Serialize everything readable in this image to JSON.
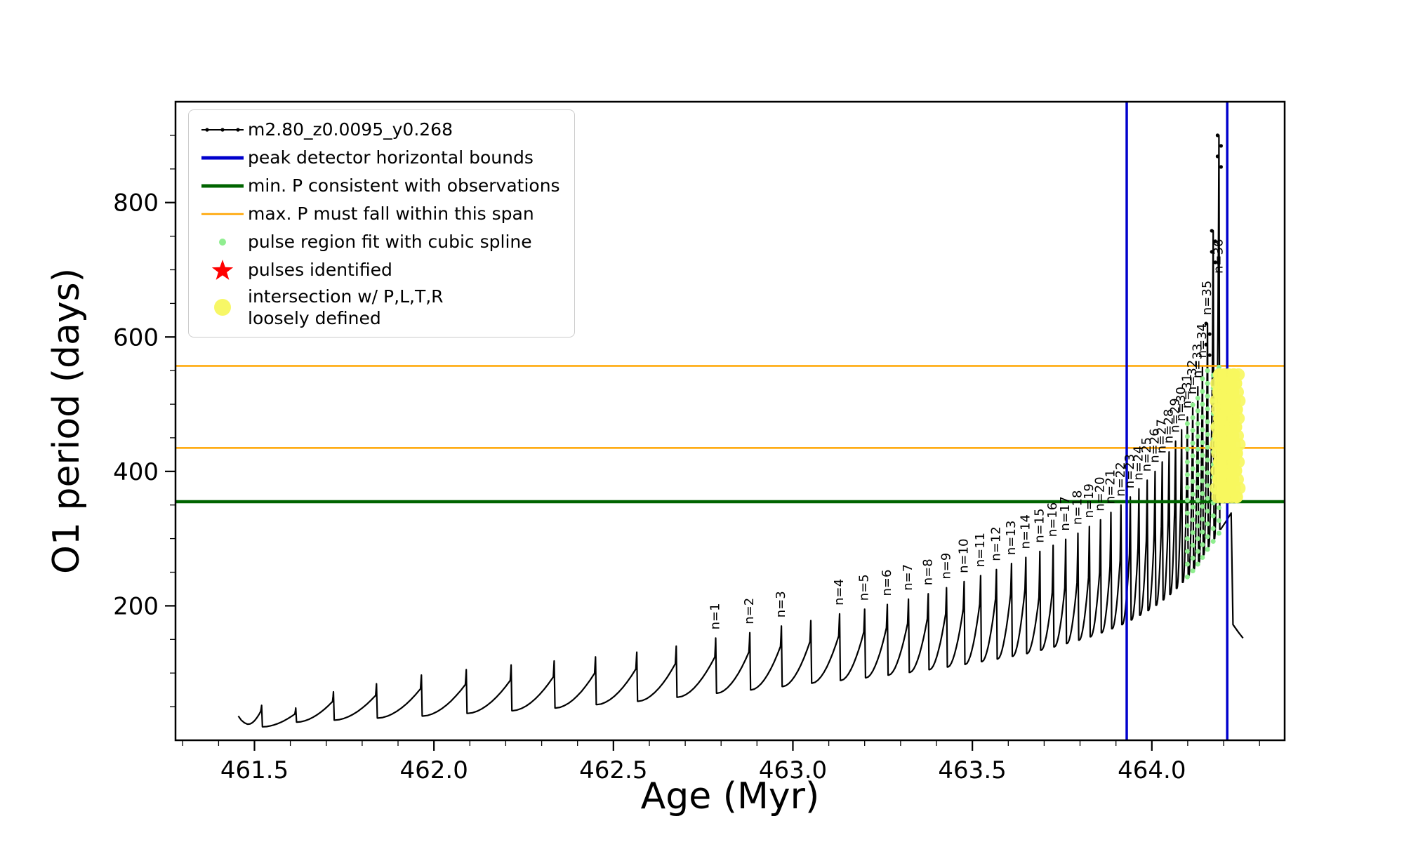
{
  "figure": {
    "background": "#ffffff"
  },
  "chart_data": {
    "type": "line",
    "title": "",
    "xlabel": "Age (Myr)",
    "ylabel": "O1 period (days)",
    "xlim": [
      461.28,
      464.37
    ],
    "ylim": [
      0,
      950
    ],
    "xticks": [
      461.5,
      462.0,
      462.5,
      463.0,
      463.5,
      464.0
    ],
    "xtick_labels": [
      "461.5",
      "462.0",
      "462.5",
      "463.0",
      "463.5",
      "464.0"
    ],
    "yticks": [
      200,
      400,
      600,
      800
    ],
    "ytick_labels": [
      "200",
      "400",
      "600",
      "800"
    ],
    "minor_x_step": 0.1,
    "minor_y_step": 50,
    "grid": false,
    "series_name": "m2.80_z0.0095_y0.268",
    "series_color": "#000000",
    "peak_detector_bounds": {
      "label": "peak detector horizontal bounds",
      "color": "#0000cd",
      "x": [
        463.93,
        464.21
      ]
    },
    "min_period_line": {
      "label": "min. P consistent with observations",
      "color": "#006400",
      "y": 355
    },
    "max_period_span": {
      "label": "max. P must fall within this span",
      "color": "#ffa500",
      "y": [
        435,
        557
      ]
    },
    "spline_region": {
      "label": "pulse region fit with cubic spline",
      "color": "#90ee90",
      "x_min": 464.09,
      "x_max": 464.19,
      "y_cap": 560
    },
    "pulses_identified": {
      "label": "pulses identified",
      "color": "#ff0000"
    },
    "intersection": {
      "label": "intersection w/ P,L,T,R\nloosely defined",
      "color": "#f7f75e",
      "x_columns": [
        464.183,
        464.191,
        464.199,
        464.207,
        464.215,
        464.223,
        464.231,
        464.239
      ],
      "y_min": 362,
      "y_max": 552,
      "y_step": 13,
      "radius": 9
    },
    "lead_in": [
      [
        461.455,
        36
      ],
      [
        461.463,
        30
      ],
      [
        461.472,
        26
      ],
      [
        461.48,
        24
      ]
    ],
    "pulses": [
      [
        461.52,
        24,
        52,
        null
      ],
      [
        461.615,
        20,
        48,
        null
      ],
      [
        461.72,
        27,
        72,
        null
      ],
      [
        461.84,
        30,
        84,
        null
      ],
      [
        461.965,
        33,
        97,
        null
      ],
      [
        462.09,
        36,
        105,
        null
      ],
      [
        462.215,
        40,
        112,
        null
      ],
      [
        462.335,
        44,
        118,
        null
      ],
      [
        462.45,
        48,
        124,
        null
      ],
      [
        462.565,
        53,
        131,
        null
      ],
      [
        462.675,
        58,
        140,
        null
      ],
      [
        462.785,
        64,
        152,
        "n=1"
      ],
      [
        462.88,
        70,
        160,
        "n=2"
      ],
      [
        462.968,
        75,
        170,
        "n=3"
      ],
      [
        463.05,
        80,
        178,
        null
      ],
      [
        463.13,
        85,
        188,
        "n=4"
      ],
      [
        463.2,
        89,
        195,
        "n=5"
      ],
      [
        463.263,
        93,
        202,
        "n=6"
      ],
      [
        463.322,
        97,
        210,
        "n=7"
      ],
      [
        463.377,
        101,
        218,
        "n=8"
      ],
      [
        463.428,
        105,
        227,
        "n=9"
      ],
      [
        463.477,
        109,
        236,
        "n=10"
      ],
      [
        463.523,
        113,
        245,
        "n=11"
      ],
      [
        463.567,
        117,
        254,
        "n=12"
      ],
      [
        463.609,
        121,
        263,
        "n=13"
      ],
      [
        463.649,
        125,
        272,
        "n=14"
      ],
      [
        463.688,
        129,
        281,
        "n=15"
      ],
      [
        463.725,
        134,
        290,
        "n=16"
      ],
      [
        463.76,
        139,
        299,
        "n=17"
      ],
      [
        463.794,
        144,
        308,
        "n=18"
      ],
      [
        463.826,
        149,
        318,
        "n=19"
      ],
      [
        463.857,
        154,
        328,
        "n=20"
      ],
      [
        463.886,
        160,
        339,
        "n=21"
      ],
      [
        463.914,
        166,
        350,
        "n=22"
      ],
      [
        463.94,
        172,
        362,
        "n=23"
      ],
      [
        463.964,
        179,
        374,
        "n=24"
      ],
      [
        463.987,
        186,
        387,
        "n=25"
      ],
      [
        464.009,
        193,
        400,
        "n=26"
      ],
      [
        464.029,
        201,
        414,
        "n=27"
      ],
      [
        464.048,
        209,
        429,
        "n=28"
      ],
      [
        464.066,
        217,
        445,
        "n=29"
      ],
      [
        464.083,
        226,
        462,
        "n=30"
      ],
      [
        464.099,
        235,
        481,
        "n=31"
      ],
      [
        464.114,
        244,
        502,
        "n=32"
      ],
      [
        464.128,
        254,
        526,
        "n=33"
      ],
      [
        464.141,
        264,
        556,
        "n=34"
      ],
      [
        464.155,
        276,
        620,
        "n=35"
      ],
      [
        464.171,
        288,
        758,
        null
      ],
      [
        464.187,
        300,
        900,
        "n=36"
      ]
    ],
    "tail": [
      [
        464.192,
        314
      ],
      [
        464.207,
        326
      ],
      [
        464.221,
        338
      ],
      [
        464.226,
        172
      ],
      [
        464.242,
        160
      ],
      [
        464.254,
        152
      ]
    ],
    "legend_position": "upper left",
    "legend": [
      {
        "marker": "line-dotted",
        "color": "#000000",
        "label": "m2.80_z0.0095_y0.268"
      },
      {
        "marker": "line-thick",
        "color": "#0000cd",
        "label": "peak detector horizontal bounds"
      },
      {
        "marker": "line-thick",
        "color": "#006400",
        "label": "min. P consistent with observations"
      },
      {
        "marker": "line",
        "color": "#ffa500",
        "label": "max. P must fall within this span"
      },
      {
        "marker": "dot-small",
        "color": "#90ee90",
        "label": "pulse region fit with cubic spline"
      },
      {
        "marker": "star",
        "color": "#ff0000",
        "label": "pulses identified"
      },
      {
        "marker": "dot-big",
        "color": "#f7f75e",
        "label": "intersection w/ P,L,T,R\nloosely defined"
      }
    ]
  }
}
